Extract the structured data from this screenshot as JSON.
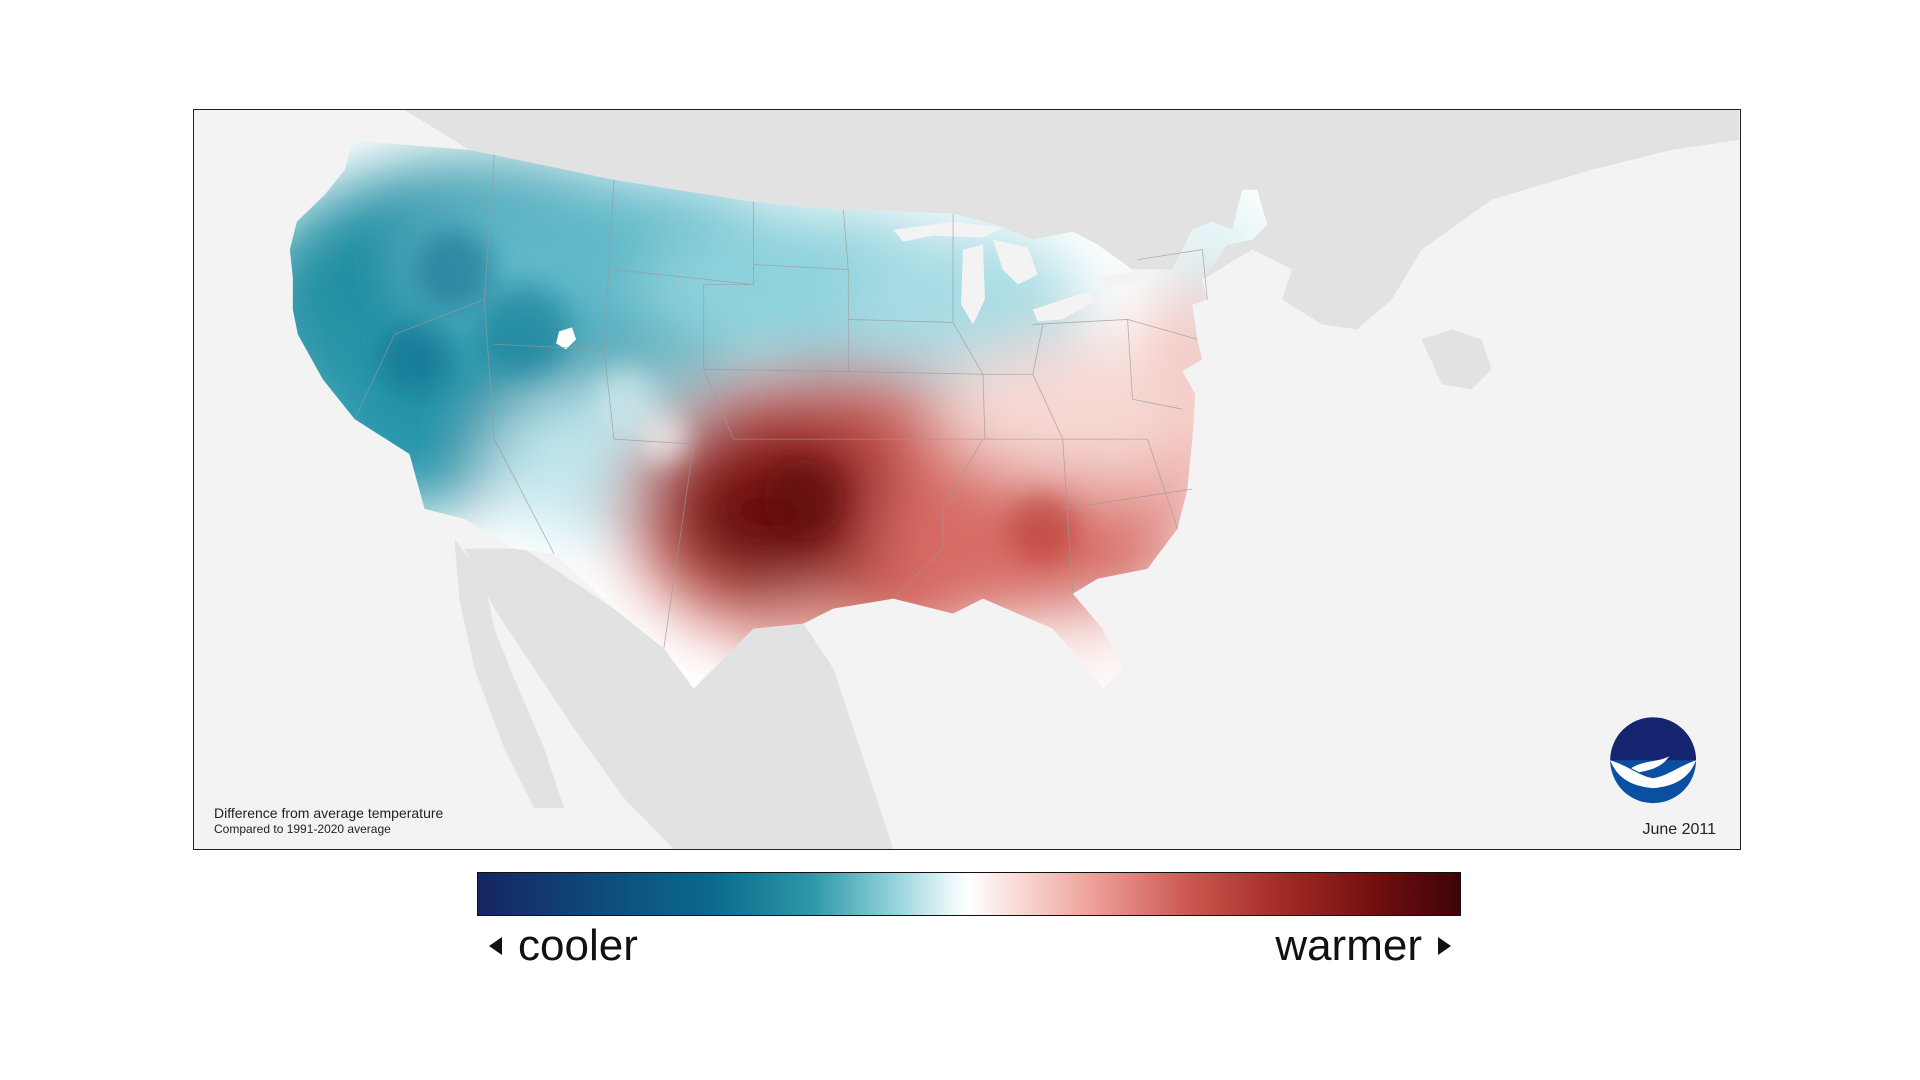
{
  "map": {
    "caption_title": "Difference from average temperature",
    "caption_subtitle": "Compared to 1991-2020 average",
    "date": "June 2011",
    "logo_text": "NOAA",
    "background_color": "#f3f3f3",
    "neighbor_land_color": "#e2e2e2"
  },
  "legend": {
    "left_label": "cooler",
    "right_label": "warmer",
    "colors": {
      "cool_extreme": "#162560",
      "cool": "#2e97a8",
      "neutral": "#ffffff",
      "warm": "#cd5a52",
      "warm_extreme": "#3c0408"
    }
  }
}
